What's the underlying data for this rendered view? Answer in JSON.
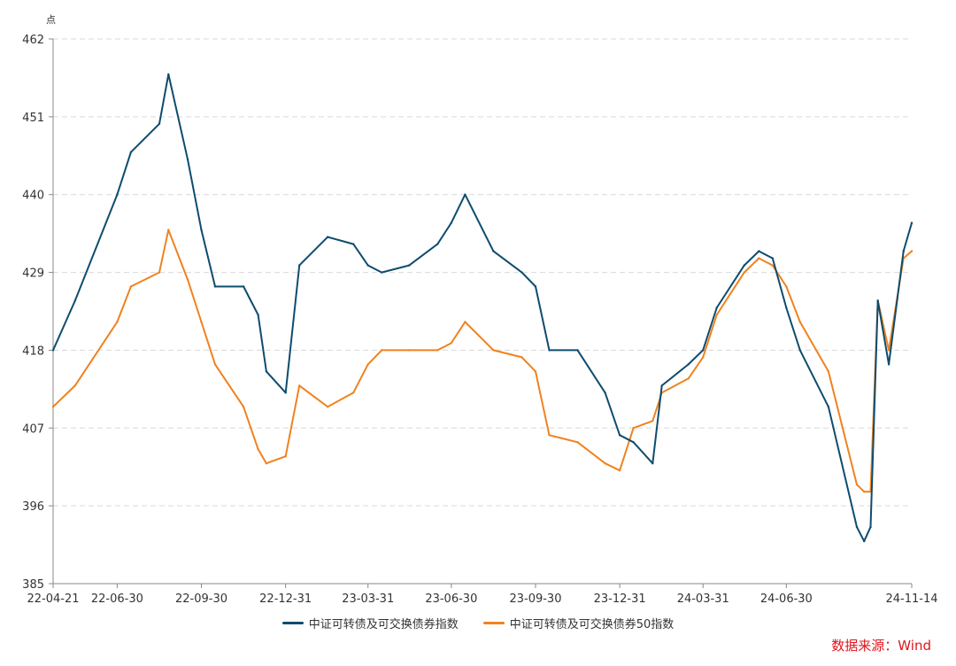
{
  "chart_data": {
    "type": "line",
    "unit": "点",
    "ylim": [
      385,
      462
    ],
    "yticks": [
      "385",
      "396",
      "407",
      "418",
      "429",
      "440",
      "451",
      "462"
    ],
    "xlabels": [
      "22-04-21",
      "22-06-30",
      "22-09-30",
      "22-12-31",
      "23-03-31",
      "23-06-30",
      "23-09-30",
      "23-12-31",
      "24-03-31",
      "24-06-30",
      "24-11-14"
    ],
    "x": [
      "22-04-21",
      "22-05-15",
      "22-06-30",
      "22-07-15",
      "22-08-15",
      "22-08-25",
      "22-09-15",
      "22-09-30",
      "22-10-15",
      "22-11-15",
      "22-12-01",
      "22-12-10",
      "22-12-31",
      "23-01-15",
      "23-02-15",
      "23-03-15",
      "23-03-31",
      "23-04-15",
      "23-05-15",
      "23-06-15",
      "23-06-30",
      "23-07-15",
      "23-08-15",
      "23-09-15",
      "23-09-30",
      "23-10-15",
      "23-11-15",
      "23-12-15",
      "23-12-31",
      "24-01-15",
      "24-02-05",
      "24-02-15",
      "24-03-15",
      "24-03-31",
      "24-04-15",
      "24-05-15",
      "24-05-31",
      "24-06-15",
      "24-06-30",
      "24-07-15",
      "24-08-15",
      "24-09-15",
      "24-09-23",
      "24-09-30",
      "24-10-08",
      "24-10-20",
      "24-11-05",
      "24-11-14"
    ],
    "series": [
      {
        "name": "中证可转债及可交换债券指数",
        "color": "#0e4c6e",
        "values": [
          418,
          425,
          440,
          446,
          450,
          457,
          445,
          435,
          427,
          427,
          423,
          415,
          412,
          430,
          434,
          433,
          430,
          429,
          430,
          433,
          436,
          440,
          432,
          429,
          427,
          418,
          418,
          412,
          406,
          405,
          402,
          413,
          416,
          418,
          424,
          430,
          432,
          431,
          424,
          418,
          410,
          393,
          391,
          393,
          425,
          416,
          432,
          436
        ]
      },
      {
        "name": "中证可转债及可交换债券50指数",
        "color": "#f0821e",
        "values": [
          410,
          413,
          422,
          427,
          429,
          435,
          428,
          422,
          416,
          410,
          404,
          402,
          403,
          413,
          410,
          412,
          416,
          418,
          418,
          418,
          419,
          422,
          418,
          417,
          415,
          406,
          405,
          402,
          401,
          407,
          408,
          412,
          414,
          417,
          423,
          429,
          431,
          430,
          427,
          422,
          415,
          399,
          398,
          398,
          425,
          418,
          431,
          432
        ]
      }
    ]
  },
  "source": "数据来源：Wind"
}
